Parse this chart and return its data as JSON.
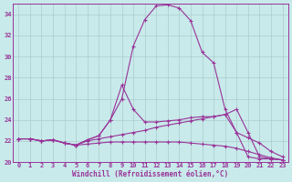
{
  "xlabel": "Windchill (Refroidissement éolien,°C)",
  "bg_color": "#c8eaea",
  "grid_color": "#aacccc",
  "line_color": "#993399",
  "xlim": [
    -0.5,
    23.5
  ],
  "ylim": [
    20,
    35
  ],
  "xticks": [
    0,
    1,
    2,
    3,
    4,
    5,
    6,
    7,
    8,
    9,
    10,
    11,
    12,
    13,
    14,
    15,
    16,
    17,
    18,
    19,
    20,
    21,
    22,
    23
  ],
  "yticks": [
    20,
    22,
    24,
    26,
    28,
    30,
    32,
    34
  ],
  "line1_x": [
    0,
    1,
    2,
    3,
    4,
    5,
    6,
    7,
    8,
    9,
    10,
    11,
    12,
    13,
    14,
    15,
    16,
    17,
    18,
    19,
    20,
    21,
    22,
    23
  ],
  "line1_y": [
    22.2,
    22.2,
    22.0,
    22.1,
    21.8,
    21.6,
    22.1,
    22.5,
    24.0,
    26.0,
    31.0,
    33.5,
    34.8,
    34.9,
    34.6,
    33.4,
    30.4,
    29.4,
    25.0,
    22.8,
    20.5,
    20.3,
    20.3,
    20.2
  ],
  "line2_x": [
    0,
    1,
    2,
    3,
    4,
    5,
    6,
    7,
    8,
    9,
    10,
    11,
    12,
    13,
    14,
    15,
    16,
    17,
    18,
    19,
    20,
    21,
    22,
    23
  ],
  "line2_y": [
    22.2,
    22.2,
    22.0,
    22.1,
    21.8,
    21.6,
    22.1,
    22.5,
    24.0,
    27.3,
    25.0,
    23.8,
    23.8,
    23.9,
    24.0,
    24.2,
    24.3,
    24.3,
    24.5,
    25.0,
    22.8,
    20.5,
    20.3,
    20.2
  ],
  "line3_x": [
    0,
    1,
    2,
    3,
    4,
    5,
    6,
    7,
    8,
    9,
    10,
    11,
    12,
    13,
    14,
    15,
    16,
    17,
    18,
    19,
    20,
    21,
    22,
    23
  ],
  "line3_y": [
    22.2,
    22.2,
    22.0,
    22.1,
    21.8,
    21.6,
    22.0,
    22.2,
    22.4,
    22.6,
    22.8,
    23.0,
    23.3,
    23.5,
    23.7,
    23.9,
    24.1,
    24.3,
    24.5,
    22.8,
    22.3,
    21.8,
    21.0,
    20.5
  ],
  "line4_x": [
    0,
    1,
    2,
    3,
    4,
    5,
    6,
    7,
    8,
    9,
    10,
    11,
    12,
    13,
    14,
    15,
    16,
    17,
    18,
    19,
    20,
    21,
    22,
    23
  ],
  "line4_y": [
    22.2,
    22.2,
    22.0,
    22.1,
    21.8,
    21.6,
    21.7,
    21.8,
    21.9,
    21.9,
    21.9,
    21.9,
    21.9,
    21.9,
    21.9,
    21.8,
    21.7,
    21.6,
    21.5,
    21.3,
    21.0,
    20.7,
    20.4,
    20.2
  ]
}
